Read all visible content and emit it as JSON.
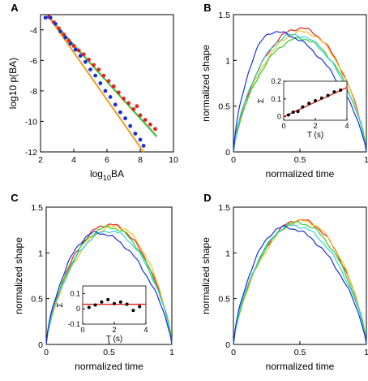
{
  "chart_data": [
    {
      "panel": "A",
      "type": "scatter",
      "xlabel_base": "log",
      "xlabel_sub": "10",
      "xlabel_rest": "BA",
      "ylabel": "log10 p(BA)",
      "xlim": [
        2,
        10
      ],
      "ylim": [
        -12,
        -3
      ],
      "xticks": [
        "2",
        "4",
        "6",
        "8",
        "10"
      ],
      "yticks": [
        "-4",
        "-6",
        "-8",
        "-10",
        "-12"
      ],
      "series": [
        {
          "color": "#e8221a",
          "points": [
            [
              2.3,
              -3.2
            ],
            [
              2.5,
              -3.15
            ],
            [
              2.8,
              -3.5
            ],
            [
              3.1,
              -3.9
            ],
            [
              3.4,
              -4.3
            ],
            [
              3.7,
              -4.7
            ],
            [
              4.0,
              -5.05
            ],
            [
              4.3,
              -5.35
            ],
            [
              4.6,
              -5.6
            ],
            [
              4.9,
              -5.95
            ],
            [
              5.2,
              -6.3
            ],
            [
              5.5,
              -6.6
            ],
            [
              5.8,
              -7.0
            ],
            [
              6.1,
              -7.35
            ],
            [
              6.4,
              -7.7
            ],
            [
              6.7,
              -8.1
            ],
            [
              7.0,
              -8.5
            ],
            [
              7.3,
              -8.8
            ],
            [
              7.6,
              -9.2
            ],
            [
              7.8,
              -9.0
            ],
            [
              8.0,
              -9.6
            ],
            [
              8.3,
              -9.9
            ],
            [
              8.6,
              -10.2
            ],
            [
              8.9,
              -10.5
            ]
          ]
        },
        {
          "color": "#1a2fd8",
          "points": [
            [
              2.3,
              -3.2
            ],
            [
              2.6,
              -3.2
            ],
            [
              2.9,
              -3.6
            ],
            [
              3.2,
              -4.1
            ],
            [
              3.5,
              -4.5
            ],
            [
              3.8,
              -4.9
            ],
            [
              4.1,
              -5.3
            ],
            [
              4.4,
              -5.7
            ],
            [
              4.7,
              -6.1
            ],
            [
              5.0,
              -6.6
            ],
            [
              5.3,
              -7.0
            ],
            [
              5.6,
              -7.5
            ],
            [
              5.9,
              -8.0
            ],
            [
              6.2,
              -8.4
            ],
            [
              6.5,
              -8.9
            ],
            [
              6.8,
              -9.4
            ],
            [
              7.1,
              -9.8
            ],
            [
              7.4,
              -10.3
            ],
            [
              7.7,
              -10.8
            ],
            [
              8.0,
              -11.2
            ],
            [
              8.2,
              -11.6
            ]
          ]
        }
      ],
      "fits": [
        {
          "color": "#2fc02f",
          "x": [
            2.6,
            9.0
          ],
          "y": [
            -3.3,
            -11.0
          ]
        },
        {
          "color": "#f0a020",
          "x": [
            2.6,
            8.2
          ],
          "y": [
            -3.3,
            -12.0
          ]
        }
      ]
    },
    {
      "panel": "B",
      "type": "line",
      "xlabel": "normalized time",
      "ylabel": "normalized shape",
      "xlim": [
        0,
        1
      ],
      "ylim": [
        0,
        1.5
      ],
      "xticks": [
        "0",
        "0.5",
        "1"
      ],
      "yticks": [
        "0",
        "0.5",
        "1",
        "1.5"
      ],
      "series": [
        {
          "color": "#e8221a",
          "peak_t": 0.5,
          "peak": 1.35
        },
        {
          "color": "#f0c020",
          "peak_t": 0.52,
          "peak": 1.31
        },
        {
          "color": "#2fd02f",
          "peak_t": 0.5,
          "peak": 1.24
        },
        {
          "color": "#30d0e0",
          "peak_t": 0.45,
          "peak": 1.28
        },
        {
          "color": "#1a2fd8",
          "peak_t": 0.3,
          "peak": 1.31
        }
      ],
      "inset": {
        "xlabel": "T (s)",
        "ylabel": "Σ",
        "xlim": [
          0,
          4
        ],
        "ylim": [
          -0.02,
          0.2
        ],
        "xticks": [
          "0",
          "2",
          "4"
        ],
        "yticks": [
          "0",
          "0.1",
          "0.2"
        ],
        "points": [
          [
            0.3,
            0.01
          ],
          [
            0.6,
            0.025
          ],
          [
            0.9,
            0.03
          ],
          [
            1.2,
            0.055
          ],
          [
            1.6,
            0.075
          ],
          [
            2.0,
            0.09
          ],
          [
            2.4,
            0.105
          ],
          [
            2.8,
            0.12
          ],
          [
            3.2,
            0.14
          ],
          [
            3.6,
            0.15
          ]
        ],
        "fit": {
          "x": [
            0,
            4
          ],
          "y": [
            0.0,
            0.165
          ]
        }
      }
    },
    {
      "panel": "C",
      "type": "line",
      "xlabel": "normalized time",
      "ylabel": "normalized shape",
      "xlim": [
        0,
        1
      ],
      "ylim": [
        0,
        1.5
      ],
      "xticks": [
        "0",
        "0.5",
        "1"
      ],
      "yticks": [
        "0",
        "0.5",
        "1",
        "1.5"
      ],
      "series": [
        {
          "color": "#e8221a",
          "peak_t": 0.5,
          "peak": 1.31
        },
        {
          "color": "#f0c020",
          "peak_t": 0.55,
          "peak": 1.29
        },
        {
          "color": "#2fd02f",
          "peak_t": 0.5,
          "peak": 1.28
        },
        {
          "color": "#30d0e0",
          "peak_t": 0.5,
          "peak": 1.24
        },
        {
          "color": "#1a2fd8",
          "peak_t": 0.4,
          "peak": 1.22
        }
      ],
      "inset": {
        "xlabel": "T (s)",
        "ylabel": "Σ",
        "xlim": [
          0,
          4
        ],
        "ylim": [
          -0.1,
          0.15
        ],
        "xticks": [
          "0",
          "2",
          "4"
        ],
        "yticks": [
          "-0.1",
          "0",
          "0.1"
        ],
        "points": [
          [
            0.4,
            0.01
          ],
          [
            0.8,
            0.025
          ],
          [
            1.2,
            0.045
          ],
          [
            1.6,
            0.06
          ],
          [
            2.0,
            0.035
          ],
          [
            2.4,
            0.045
          ],
          [
            2.8,
            0.03
          ],
          [
            3.2,
            -0.01
          ],
          [
            3.6,
            0.015
          ]
        ],
        "fit": {
          "x": [
            0,
            4
          ],
          "y": [
            0.03,
            0.03
          ]
        }
      }
    },
    {
      "panel": "D",
      "type": "line",
      "xlabel": "normalized time",
      "ylabel": "normalized shape",
      "xlim": [
        0,
        1
      ],
      "ylim": [
        0,
        1.5
      ],
      "xticks": [
        "0",
        "0.5",
        "1"
      ],
      "yticks": [
        "0",
        "0.5",
        "1",
        "1.5"
      ],
      "series": [
        {
          "color": "#e8221a",
          "peak_t": 0.5,
          "peak": 1.36
        },
        {
          "color": "#f0c020",
          "peak_t": 0.52,
          "peak": 1.35
        },
        {
          "color": "#2fd02f",
          "peak_t": 0.48,
          "peak": 1.33
        },
        {
          "color": "#30d0e0",
          "peak_t": 0.45,
          "peak": 1.3
        },
        {
          "color": "#1a2fd8",
          "peak_t": 0.38,
          "peak": 1.28
        }
      ]
    }
  ]
}
